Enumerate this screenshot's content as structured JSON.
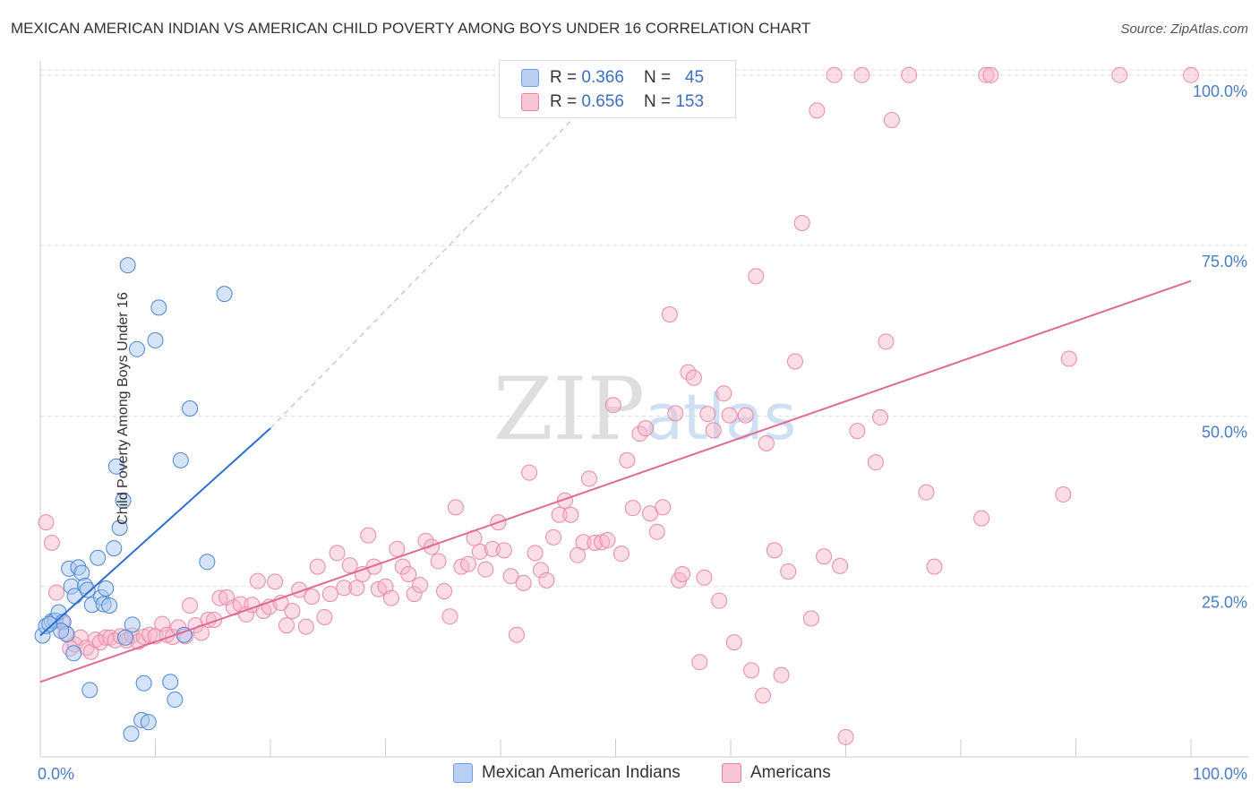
{
  "title": "MEXICAN AMERICAN INDIAN VS AMERICAN CHILD POVERTY AMONG BOYS UNDER 16 CORRELATION CHART",
  "source": "Source: ZipAtlas.com",
  "watermark": "ZIPatlas",
  "legend": {
    "r_label": "R =",
    "n_label": "N =",
    "rows": [
      {
        "r": "0.366",
        "n": "45",
        "color": "#6f9fe0",
        "fill": "#b9d0f2"
      },
      {
        "r": "0.656",
        "n": "153",
        "color": "#e87fa0",
        "fill": "#f7c6d5"
      }
    ]
  },
  "colors": {
    "blue": "#4a86d8",
    "blue_line": "#2a6fd0",
    "pink": "#e88aa8",
    "pink_line": "#e06a94",
    "axis_text": "#4a7cc9",
    "grid": "#dddddd"
  },
  "chart_data": {
    "type": "scatter",
    "title": "MEXICAN AMERICAN INDIAN VS AMERICAN CHILD POVERTY AMONG BOYS UNDER 16 CORRELATION CHART",
    "xlabel": "",
    "ylabel": "Child Poverty Among Boys Under 16",
    "xlim": [
      0,
      100
    ],
    "ylim": [
      0,
      102
    ],
    "x_tick_labels": [
      "0.0%",
      "100.0%"
    ],
    "y_tick_labels": [
      "25.0%",
      "50.0%",
      "75.0%",
      "100.0%"
    ],
    "y_ticks": [
      25,
      50,
      75,
      100
    ],
    "grid": true,
    "legend_position": "top-center",
    "series": [
      {
        "name": "Mexican American Indians",
        "r": 0.366,
        "n": 45,
        "trend": {
          "x": [
            0,
            20
          ],
          "y": [
            17.8,
            48.2
          ],
          "dashed_to": [
            50,
            100
          ]
        },
        "points": [
          [
            0.2,
            17.8
          ],
          [
            0.5,
            19.2
          ],
          [
            1.0,
            19.9
          ],
          [
            1.3,
            20.0
          ],
          [
            1.6,
            21.2
          ],
          [
            2.0,
            19.8
          ],
          [
            2.3,
            18.0
          ],
          [
            2.5,
            27.6
          ],
          [
            2.7,
            25.0
          ],
          [
            2.9,
            15.2
          ],
          [
            3.0,
            23.6
          ],
          [
            3.3,
            27.8
          ],
          [
            3.6,
            27.0
          ],
          [
            3.9,
            25.1
          ],
          [
            4.1,
            24.5
          ],
          [
            4.5,
            22.3
          ],
          [
            5.0,
            29.2
          ],
          [
            5.3,
            23.4
          ],
          [
            5.5,
            22.4
          ],
          [
            5.7,
            24.7
          ],
          [
            6.0,
            22.2
          ],
          [
            6.4,
            30.6
          ],
          [
            6.6,
            42.6
          ],
          [
            6.9,
            33.6
          ],
          [
            7.2,
            37.6
          ],
          [
            7.4,
            17.5
          ],
          [
            7.6,
            72.1
          ],
          [
            8.0,
            19.4
          ],
          [
            8.4,
            59.8
          ],
          [
            9.0,
            10.8
          ],
          [
            10.0,
            61.1
          ],
          [
            10.3,
            65.9
          ],
          [
            11.3,
            11.0
          ],
          [
            11.7,
            8.4
          ],
          [
            12.2,
            43.5
          ],
          [
            13.0,
            51.1
          ],
          [
            14.5,
            28.6
          ],
          [
            16.0,
            67.9
          ],
          [
            4.3,
            9.8
          ],
          [
            8.8,
            5.4
          ],
          [
            9.4,
            5.1
          ],
          [
            7.9,
            3.4
          ],
          [
            12.5,
            17.9
          ],
          [
            1.8,
            18.5
          ],
          [
            0.8,
            19.5
          ]
        ]
      },
      {
        "name": "Americans",
        "r": 0.656,
        "n": 153,
        "trend": {
          "x": [
            0,
            100
          ],
          "y": [
            11.0,
            69.8
          ]
        },
        "points": [
          [
            0.5,
            34.4
          ],
          [
            1.0,
            31.4
          ],
          [
            1.4,
            24.1
          ],
          [
            1.9,
            19.7
          ],
          [
            2.2,
            18.2
          ],
          [
            2.6,
            15.9
          ],
          [
            3.0,
            16.5
          ],
          [
            3.5,
            17.5
          ],
          [
            4.0,
            16.0
          ],
          [
            4.4,
            15.4
          ],
          [
            4.8,
            17.2
          ],
          [
            5.2,
            16.8
          ],
          [
            5.7,
            17.5
          ],
          [
            6.1,
            17.5
          ],
          [
            6.5,
            17.1
          ],
          [
            7.0,
            17.7
          ],
          [
            7.5,
            17.1
          ],
          [
            8.0,
            17.8
          ],
          [
            8.5,
            16.9
          ],
          [
            9.0,
            17.6
          ],
          [
            9.5,
            17.9
          ],
          [
            10.0,
            17.7
          ],
          [
            10.6,
            19.5
          ],
          [
            11.0,
            17.9
          ],
          [
            11.5,
            17.6
          ],
          [
            12.0,
            19.0
          ],
          [
            12.6,
            17.7
          ],
          [
            13.0,
            22.2
          ],
          [
            13.5,
            19.3
          ],
          [
            14.0,
            18.2
          ],
          [
            14.6,
            20.1
          ],
          [
            15.1,
            20.1
          ],
          [
            15.6,
            23.3
          ],
          [
            16.2,
            23.4
          ],
          [
            16.8,
            21.9
          ],
          [
            17.4,
            22.4
          ],
          [
            17.9,
            20.9
          ],
          [
            18.4,
            22.3
          ],
          [
            18.9,
            25.8
          ],
          [
            19.4,
            21.4
          ],
          [
            19.9,
            22.0
          ],
          [
            20.4,
            25.7
          ],
          [
            20.9,
            22.6
          ],
          [
            21.4,
            19.3
          ],
          [
            21.9,
            21.4
          ],
          [
            22.5,
            24.5
          ],
          [
            23.1,
            19.1
          ],
          [
            23.6,
            23.5
          ],
          [
            24.1,
            27.9
          ],
          [
            24.7,
            20.5
          ],
          [
            25.2,
            23.9
          ],
          [
            25.8,
            29.9
          ],
          [
            26.4,
            24.8
          ],
          [
            26.9,
            28.1
          ],
          [
            27.5,
            24.8
          ],
          [
            28.0,
            26.8
          ],
          [
            28.5,
            32.5
          ],
          [
            29.0,
            27.9
          ],
          [
            29.4,
            24.6
          ],
          [
            30.0,
            25.0
          ],
          [
            30.5,
            23.3
          ],
          [
            31.0,
            30.5
          ],
          [
            31.5,
            27.9
          ],
          [
            32.0,
            26.8
          ],
          [
            32.5,
            23.9
          ],
          [
            33.0,
            25.2
          ],
          [
            33.5,
            31.7
          ],
          [
            34.0,
            30.8
          ],
          [
            34.6,
            28.7
          ],
          [
            35.1,
            24.3
          ],
          [
            35.6,
            20.6
          ],
          [
            36.1,
            36.6
          ],
          [
            36.6,
            27.9
          ],
          [
            37.2,
            28.3
          ],
          [
            37.7,
            32.1
          ],
          [
            38.2,
            30.1
          ],
          [
            38.7,
            27.5
          ],
          [
            39.3,
            30.5
          ],
          [
            39.8,
            34.4
          ],
          [
            40.3,
            30.3
          ],
          [
            40.9,
            26.5
          ],
          [
            41.4,
            17.9
          ],
          [
            42.0,
            25.5
          ],
          [
            42.5,
            41.7
          ],
          [
            43.0,
            29.9
          ],
          [
            43.5,
            27.4
          ],
          [
            44.0,
            25.9
          ],
          [
            44.6,
            32.2
          ],
          [
            45.1,
            35.5
          ],
          [
            45.6,
            37.6
          ],
          [
            46.1,
            35.5
          ],
          [
            46.7,
            29.6
          ],
          [
            47.2,
            31.5
          ],
          [
            47.7,
            40.8
          ],
          [
            48.2,
            31.4
          ],
          [
            48.8,
            31.5
          ],
          [
            49.3,
            31.8
          ],
          [
            49.8,
            51.6
          ],
          [
            50.5,
            29.8
          ],
          [
            51.0,
            43.5
          ],
          [
            51.5,
            36.5
          ],
          [
            52.1,
            47.4
          ],
          [
            52.6,
            48.2
          ],
          [
            53.0,
            35.7
          ],
          [
            53.6,
            33.0
          ],
          [
            54.1,
            36.6
          ],
          [
            54.7,
            64.9
          ],
          [
            55.2,
            50.4
          ],
          [
            55.5,
            25.9
          ],
          [
            55.8,
            26.8
          ],
          [
            56.3,
            56.4
          ],
          [
            56.8,
            55.6
          ],
          [
            57.3,
            13.9
          ],
          [
            57.7,
            26.3
          ],
          [
            58.0,
            50.3
          ],
          [
            58.5,
            47.9
          ],
          [
            59.0,
            22.9
          ],
          [
            59.4,
            53.3
          ],
          [
            59.9,
            50.1
          ],
          [
            60.3,
            16.8
          ],
          [
            61.3,
            50.1
          ],
          [
            61.8,
            12.7
          ],
          [
            62.2,
            70.5
          ],
          [
            62.8,
            9.0
          ],
          [
            63.1,
            46.0
          ],
          [
            63.8,
            30.3
          ],
          [
            64.4,
            12.0
          ],
          [
            65.0,
            27.2
          ],
          [
            65.6,
            58.0
          ],
          [
            66.2,
            78.3
          ],
          [
            67.0,
            20.3
          ],
          [
            67.5,
            94.8
          ],
          [
            68.1,
            29.4
          ],
          [
            69.0,
            100
          ],
          [
            69.5,
            28.0
          ],
          [
            70.0,
            2.9
          ],
          [
            71.0,
            47.8
          ],
          [
            71.4,
            100
          ],
          [
            72.6,
            43.2
          ],
          [
            73.0,
            49.8
          ],
          [
            73.5,
            60.9
          ],
          [
            74.0,
            93.4
          ],
          [
            75.5,
            100
          ],
          [
            77.0,
            38.8
          ],
          [
            77.7,
            27.9
          ],
          [
            81.8,
            35.0
          ],
          [
            82.2,
            100
          ],
          [
            82.6,
            100
          ],
          [
            88.9,
            38.5
          ],
          [
            89.4,
            58.4
          ],
          [
            93.8,
            100
          ],
          [
            100,
            100
          ],
          [
            55.8,
            100
          ]
        ]
      }
    ]
  },
  "x_tick_texts": {
    "left": "0.0%",
    "right": "100.0%"
  },
  "y_tick_texts": [
    "100.0%",
    "75.0%",
    "50.0%",
    "25.0%"
  ],
  "bottom_legend": [
    "Mexican American Indians",
    "Americans"
  ]
}
